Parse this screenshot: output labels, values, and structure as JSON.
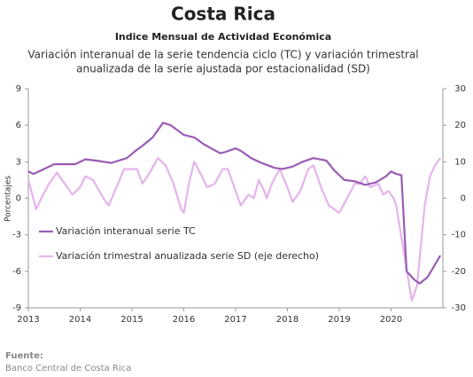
{
  "chart_data": {
    "type": "line",
    "title": "Costa Rica",
    "subtitle": "Indice Mensual de  Actividad Económica",
    "chart_title": [
      "Variación interanual de la serie tendencia ciclo (TC) y variación trimestral",
      "anualizada de la serie ajustada por estacionalidad (SD)"
    ],
    "ylabel": "Porcentajes",
    "source_label": "Fuente:",
    "source": "Banco Central de Costa Rica",
    "xlim": [
      2013,
      2021
    ],
    "xticks": [
      2013,
      2014,
      2015,
      2016,
      2017,
      2018,
      2019,
      2020
    ],
    "ylim": [
      -9,
      9
    ],
    "yticks": [
      -9,
      -6,
      -3,
      0,
      3,
      6,
      9
    ],
    "y2lim": [
      -30,
      30
    ],
    "y2ticks": [
      -30,
      -20,
      -10,
      0,
      10,
      20,
      30
    ],
    "series": [
      {
        "name": "Variación interanual serie TC",
        "color": "#9a5cb4",
        "x": [
          2013,
          2013.1,
          2013.3,
          2013.5,
          2013.9,
          2014.1,
          2014.3,
          2014.6,
          2014.9,
          2015.1,
          2015.2,
          2015.4,
          2015.6,
          2015.75,
          2016,
          2016.2,
          2016.4,
          2016.7,
          2016.8,
          2017,
          2017.1,
          2017.3,
          2017.5,
          2017.75,
          2017.9,
          2018.1,
          2018.3,
          2018.5,
          2018.75,
          2018.9,
          2019.1,
          2019.3,
          2019.5,
          2019.7,
          2019.9,
          2020,
          2020.1,
          2020.2,
          2020.3,
          2020.45,
          2020.55,
          2020.7,
          2020.8,
          2020.95
        ],
        "values": [
          2.2,
          2.0,
          2.4,
          2.8,
          2.8,
          3.2,
          3.1,
          2.9,
          3.3,
          4.0,
          4.3,
          5.0,
          6.2,
          6.0,
          5.2,
          5.0,
          4.4,
          3.7,
          3.8,
          4.1,
          3.9,
          3.3,
          2.9,
          2.5,
          2.4,
          2.6,
          3.0,
          3.3,
          3.1,
          2.3,
          1.5,
          1.4,
          1.1,
          1.3,
          1.8,
          2.2,
          2.0,
          1.9,
          -6.0,
          -6.7,
          -7.0,
          -6.5,
          -5.8,
          -4.7
        ]
      },
      {
        "name": "Variación trimestral anualizada serie SD (eje derecho)",
        "color": "#e6b3ec",
        "axis": "y2",
        "x": [
          2013,
          2013.15,
          2013.25,
          2013.4,
          2013.55,
          2013.7,
          2013.85,
          2014,
          2014.1,
          2014.25,
          2014.45,
          2014.55,
          2014.7,
          2014.85,
          2015,
          2015.1,
          2015.2,
          2015.3,
          2015.5,
          2015.65,
          2015.8,
          2015.95,
          2016,
          2016.1,
          2016.2,
          2016.35,
          2016.45,
          2016.6,
          2016.75,
          2016.85,
          2017,
          2017.1,
          2017.25,
          2017.35,
          2017.45,
          2017.55,
          2017.6,
          2017.7,
          2017.85,
          2018,
          2018.1,
          2018.25,
          2018.4,
          2018.5,
          2018.65,
          2018.8,
          2018.9,
          2019,
          2019.15,
          2019.3,
          2019.4,
          2019.5,
          2019.6,
          2019.75,
          2019.85,
          2019.95,
          2020.05,
          2020.1,
          2020.25,
          2020.4,
          2020.5,
          2020.65,
          2020.75,
          2020.85,
          2020.95
        ],
        "values": [
          5,
          -3,
          0,
          4,
          7,
          4,
          1,
          3,
          6,
          5,
          0,
          -2,
          3,
          8,
          8,
          8,
          4,
          6,
          11,
          9,
          4,
          -3,
          -4,
          4,
          10,
          6,
          3,
          4,
          8,
          8,
          2,
          -2,
          1,
          0,
          5,
          2,
          0,
          4,
          8,
          3,
          -1,
          2,
          8,
          9,
          3,
          -2,
          -3,
          -4,
          0,
          4,
          4,
          6,
          3,
          4,
          1,
          2,
          0,
          -2,
          -15,
          -28,
          -24,
          -2,
          6,
          9,
          11
        ]
      }
    ]
  }
}
